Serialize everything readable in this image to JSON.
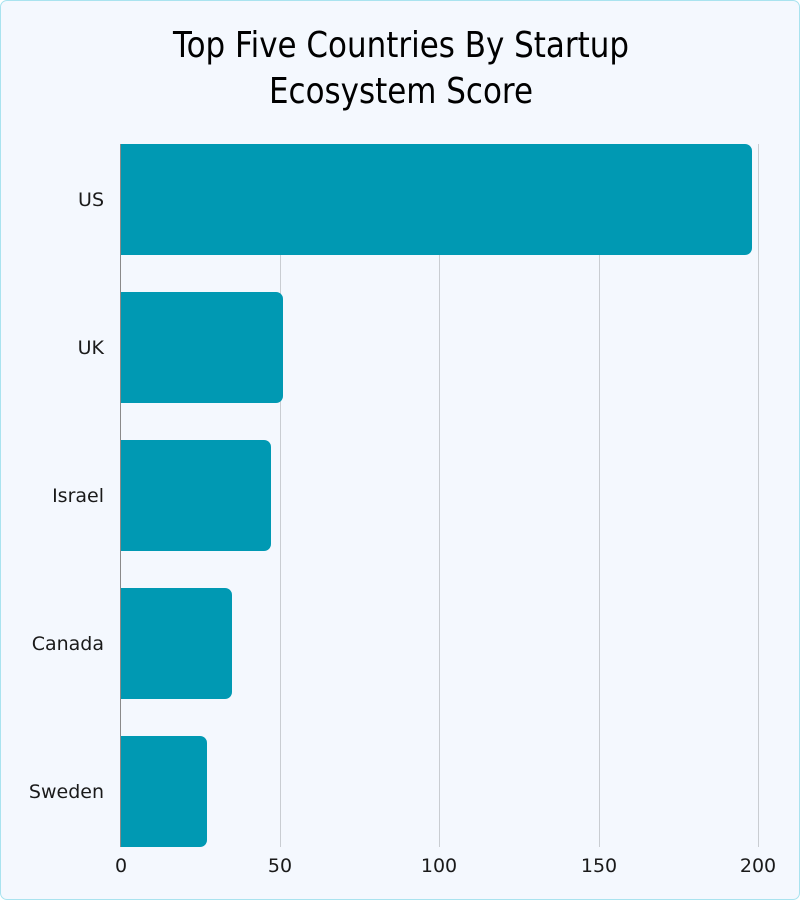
{
  "chart_data": {
    "type": "bar",
    "orientation": "horizontal",
    "title": "Top Five Countries By Startup Ecosystem Score",
    "title_lines": [
      "Top Five Countries By Startup",
      "Ecosystem Score"
    ],
    "categories": [
      "US",
      "UK",
      "Israel",
      "Canada",
      "Sweden"
    ],
    "values": [
      198,
      51,
      47,
      35,
      27
    ],
    "xlabel": "",
    "ylabel": "",
    "xlim": [
      0,
      200
    ],
    "x_ticks": [
      "0",
      "50",
      "100",
      "150",
      "200"
    ],
    "grid": "vertical",
    "legend": "none",
    "bar_color": "#0099b3"
  },
  "colors": {
    "background": "#f4f8fe",
    "border": "#a9e3ef",
    "bar": "#0099b3",
    "grid": "#c9cdd2"
  }
}
